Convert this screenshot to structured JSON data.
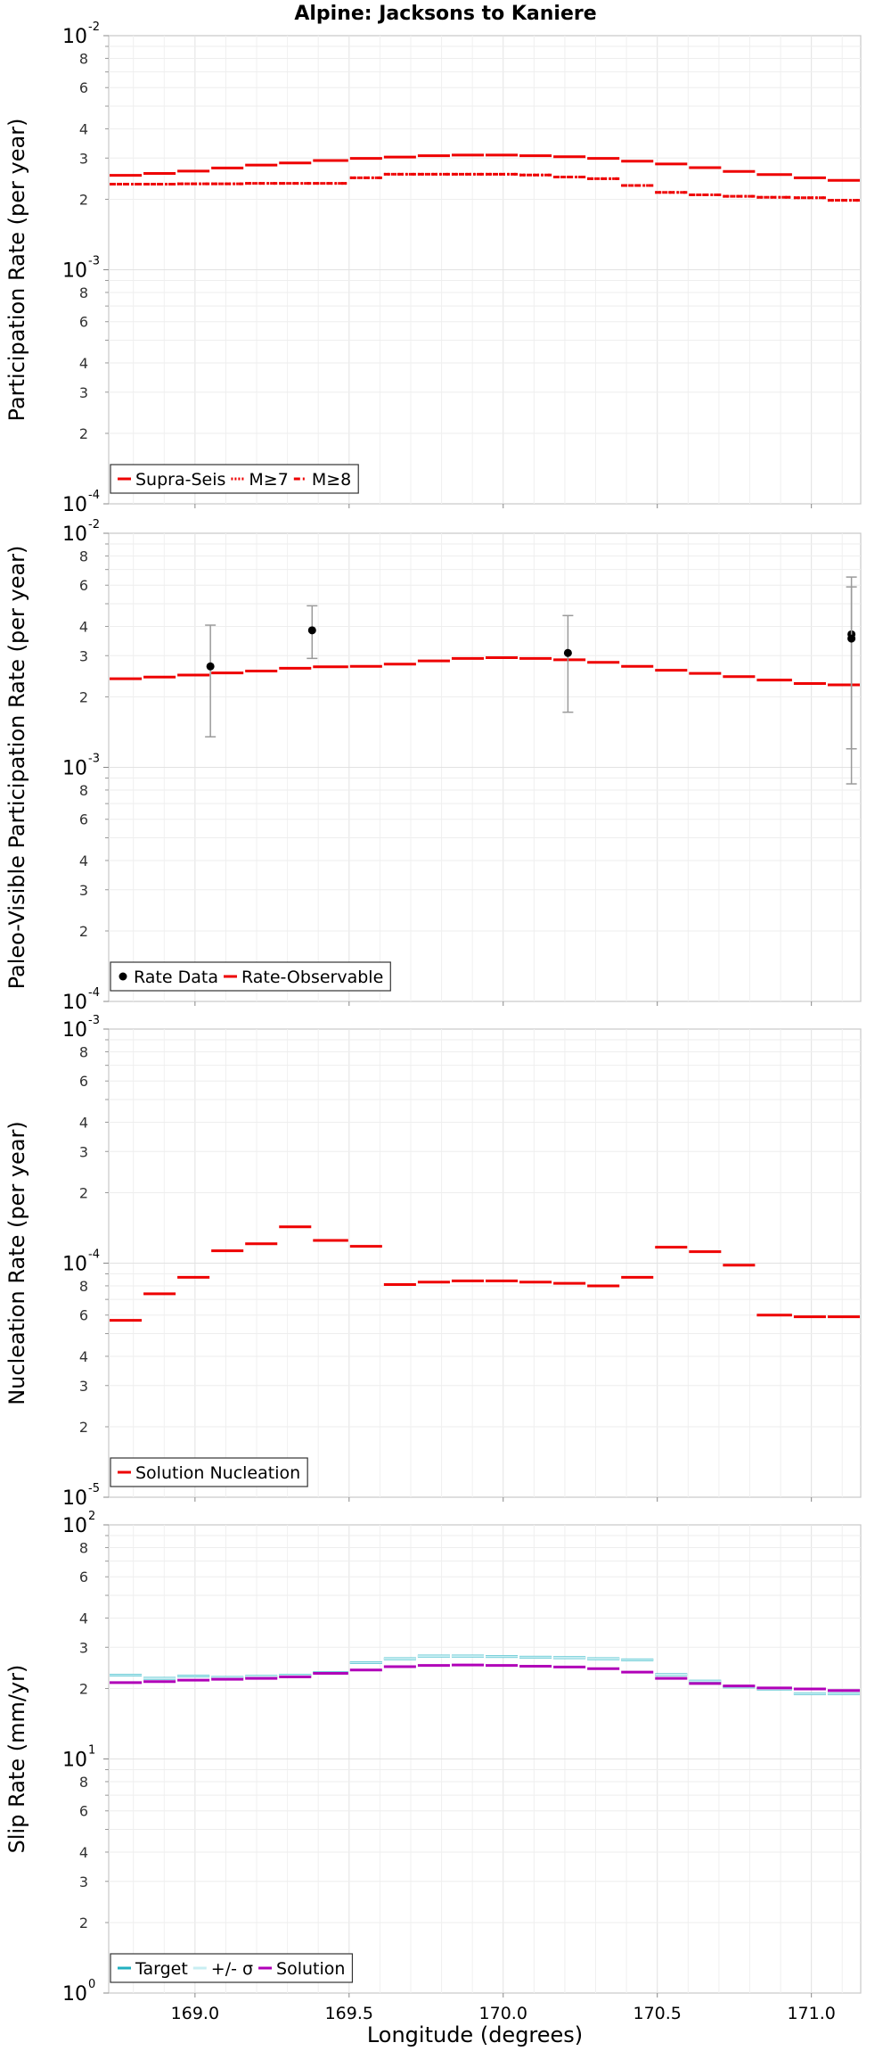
{
  "chart_data": {
    "title": "Alpine: Jacksons to Kaniere",
    "xlabel": "Longitude (degrees)",
    "x_ticks": [
      "169.0",
      "169.5",
      "170.0",
      "170.5",
      "171.0"
    ],
    "x_tick_values": [
      169.0,
      169.5,
      170.0,
      170.5,
      171.0
    ],
    "xlim": [
      168.72,
      171.16
    ],
    "segment_edges": [
      168.72,
      168.83,
      168.94,
      169.05,
      169.16,
      169.27,
      169.38,
      169.5,
      169.61,
      169.72,
      169.83,
      169.94,
      170.05,
      170.16,
      170.27,
      170.38,
      170.49,
      170.6,
      170.71,
      170.82,
      170.94,
      171.05,
      171.16
    ],
    "panels": [
      {
        "type": "line",
        "ylabel": "Participation Rate (per year)",
        "yscale": "log",
        "ylim": [
          0.0001,
          0.01
        ],
        "y_major_ticks": [
          {
            "base": "10",
            "exp": "-4"
          },
          {
            "base": "10",
            "exp": "-3"
          },
          {
            "base": "10",
            "exp": "-2"
          }
        ],
        "y_minor_labels": [
          "2",
          "3",
          "4",
          "6",
          "8"
        ],
        "legend": [
          "Supra-Seis",
          "M≥7",
          "M≥8"
        ],
        "series": [
          {
            "name": "Supra-Seis",
            "color": "#ee0000",
            "style": "solid",
            "values": [
              0.00253,
              0.00258,
              0.00264,
              0.00272,
              0.0028,
              0.00286,
              0.00293,
              0.00299,
              0.00303,
              0.00307,
              0.00309,
              0.00309,
              0.00307,
              0.00304,
              0.00299,
              0.00291,
              0.00283,
              0.00273,
              0.00263,
              0.00255,
              0.00247,
              0.00241
            ]
          },
          {
            "name": "M≥7",
            "color": "#ee0000",
            "style": "dotted",
            "values": [
              0.00232,
              0.00232,
              0.00233,
              0.00233,
              0.00234,
              0.00234,
              0.00234,
              0.00247,
              0.00256,
              0.00256,
              0.00256,
              0.00256,
              0.00254,
              0.00249,
              0.00245,
              0.00229,
              0.00214,
              0.00209,
              0.00206,
              0.00204,
              0.00203,
              0.00198
            ]
          },
          {
            "name": "M≥8",
            "color": "#ee0000",
            "style": "dashdot",
            "values": [
              0.00232,
              0.00232,
              0.00233,
              0.00233,
              0.00234,
              0.00234,
              0.00234,
              0.00247,
              0.00256,
              0.00256,
              0.00256,
              0.00256,
              0.00254,
              0.00249,
              0.00245,
              0.00229,
              0.00214,
              0.00209,
              0.00206,
              0.00204,
              0.00203,
              0.00198
            ]
          }
        ]
      },
      {
        "type": "line",
        "ylabel": "Paleo-Visible Participation Rate (per year)",
        "yscale": "log",
        "ylim": [
          0.0001,
          0.01
        ],
        "y_major_ticks": [
          {
            "base": "10",
            "exp": "-4"
          },
          {
            "base": "10",
            "exp": "-3"
          },
          {
            "base": "10",
            "exp": "-2"
          }
        ],
        "y_minor_labels": [
          "2",
          "3",
          "4",
          "6",
          "8"
        ],
        "legend": [
          "Rate Data",
          "Rate-Observable"
        ],
        "series": [
          {
            "name": "Rate-Observable",
            "color": "#ee0000",
            "style": "solid",
            "values": [
              0.00239,
              0.00243,
              0.00248,
              0.00253,
              0.00258,
              0.00265,
              0.00269,
              0.0027,
              0.00276,
              0.00285,
              0.00292,
              0.00294,
              0.00292,
              0.00288,
              0.00281,
              0.0027,
              0.0026,
              0.00252,
              0.00244,
              0.00236,
              0.00228,
              0.00225
            ]
          }
        ],
        "points": [
          {
            "name": "Rate Data",
            "x": 169.05,
            "y": 0.0027,
            "low": 0.00135,
            "high": 0.00405
          },
          {
            "name": "Rate Data",
            "x": 169.38,
            "y": 0.00385,
            "low": 0.00292,
            "high": 0.0049
          },
          {
            "name": "Rate Data",
            "x": 170.21,
            "y": 0.00308,
            "low": 0.00172,
            "high": 0.00445
          },
          {
            "name": "Rate Data",
            "x": 171.13,
            "y": 0.0037,
            "low": 0.00085,
            "high": 0.0065
          },
          {
            "name": "Rate Data",
            "x": 171.13,
            "y": 0.00355,
            "low": 0.0012,
            "high": 0.0059
          }
        ]
      },
      {
        "type": "line",
        "ylabel": "Nucleation Rate (per year)",
        "yscale": "log",
        "ylim": [
          1e-05,
          0.001
        ],
        "y_major_ticks": [
          {
            "base": "10",
            "exp": "-5"
          },
          {
            "base": "10",
            "exp": "-4"
          },
          {
            "base": "10",
            "exp": "-3"
          }
        ],
        "y_minor_labels": [
          "2",
          "3",
          "4",
          "6",
          "8"
        ],
        "legend": [
          "Solution Nucleation"
        ],
        "series": [
          {
            "name": "Solution Nucleation",
            "color": "#ee0000",
            "style": "solid",
            "values": [
              5.7e-05,
              7.4e-05,
              8.7e-05,
              0.000113,
              0.000121,
              0.000143,
              0.000125,
              0.000118,
              8.1e-05,
              8.3e-05,
              8.4e-05,
              8.4e-05,
              8.3e-05,
              8.2e-05,
              8e-05,
              8.7e-05,
              0.000117,
              0.000112,
              9.8e-05,
              6e-05,
              5.9e-05,
              5.9e-05
            ]
          }
        ]
      },
      {
        "type": "line",
        "ylabel": "Slip Rate (mm/yr)",
        "yscale": "log",
        "ylim": [
          1,
          100
        ],
        "y_major_ticks": [
          {
            "base": "10",
            "exp": "0"
          },
          {
            "base": "10",
            "exp": "1"
          },
          {
            "base": "10",
            "exp": "2"
          }
        ],
        "y_minor_labels": [
          "2",
          "3",
          "4",
          "6",
          "8"
        ],
        "legend": [
          "Target",
          "+/- σ",
          "Solution"
        ],
        "series": [
          {
            "name": "Target",
            "color": "#22b0c0",
            "style": "solid",
            "values": [
              22.8,
              22.1,
              22.6,
              22.3,
              22.5,
              22.8,
              23.4,
              25.8,
              26.8,
              27.5,
              27.5,
              27.4,
              27.2,
              27.1,
              26.8,
              26.5,
              22.9,
              21.5,
              20.3,
              19.9,
              19.0,
              19.0
            ]
          },
          {
            "name": "+/- σ",
            "color": "#c8eef2",
            "style": "solid",
            "values": [
              22.8,
              22.1,
              22.6,
              22.3,
              22.5,
              22.8,
              23.4,
              25.8,
              26.8,
              27.5,
              27.5,
              27.4,
              27.2,
              27.1,
              26.8,
              26.5,
              22.9,
              21.5,
              20.3,
              19.9,
              19.0,
              19.0
            ]
          },
          {
            "name": "Solution",
            "color": "#b000b8",
            "style": "solid",
            "values": [
              21.2,
              21.4,
              21.7,
              21.9,
              22.1,
              22.4,
              23.2,
              24.0,
              24.8,
              25.1,
              25.2,
              25.1,
              24.9,
              24.7,
              24.3,
              23.5,
              22.1,
              21.0,
              20.5,
              20.1,
              19.9,
              19.6
            ]
          }
        ]
      }
    ]
  }
}
